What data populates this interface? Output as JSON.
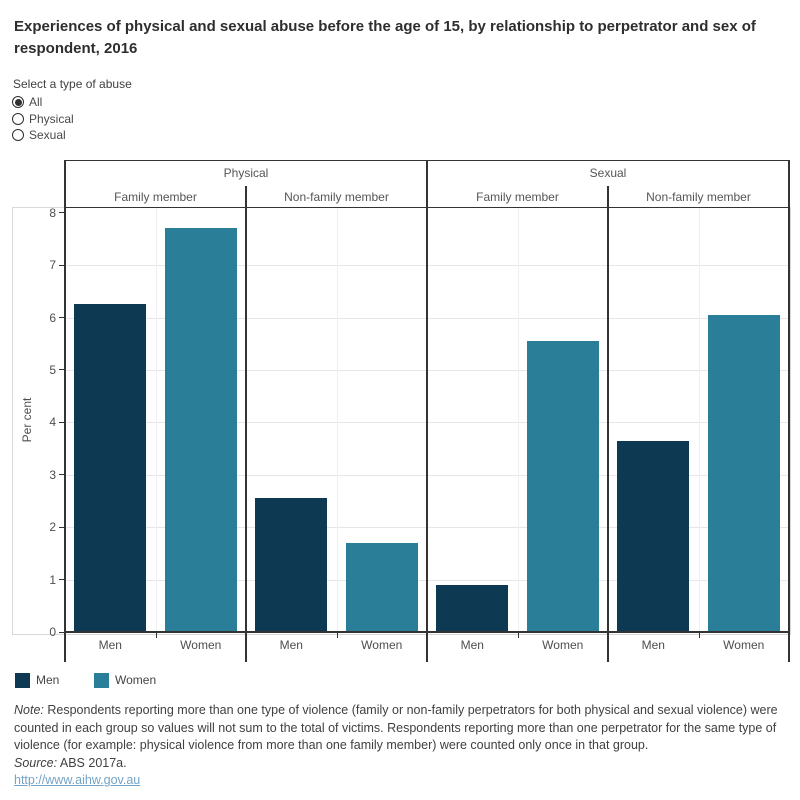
{
  "title": "Experiences of physical and sexual abuse before the age of 15, by relationship to perpetrator and sex of respondent, 2016",
  "filter": {
    "label": "Select a type of abuse",
    "options": [
      {
        "label": "All",
        "selected": true
      },
      {
        "label": "Physical",
        "selected": false
      },
      {
        "label": "Sexual",
        "selected": false
      }
    ]
  },
  "chart_data": {
    "type": "bar",
    "title": "Experiences of physical and sexual abuse before the age of 15, by relationship to perpetrator and sex of respondent, 2016",
    "ylabel": "Per cent",
    "ylim": [
      0,
      8
    ],
    "yticks": [
      0,
      1,
      2,
      3,
      4,
      5,
      6,
      7,
      8
    ],
    "grid": "horizontal",
    "legend_position": "bottom-left",
    "x_categories": [
      "Men",
      "Women"
    ],
    "series": [
      {
        "name": "Men",
        "color": "#0d3a52"
      },
      {
        "name": "Women",
        "color": "#2a7e98"
      }
    ],
    "group_headers": [
      {
        "label": "Physical",
        "spans_panels": [
          0,
          1
        ]
      },
      {
        "label": "Sexual",
        "spans_panels": [
          2,
          3
        ]
      }
    ],
    "panels": [
      {
        "abuse_type": "Physical",
        "perpetrator": "Family member",
        "values": {
          "Men": 6.25,
          "Women": 7.7
        }
      },
      {
        "abuse_type": "Physical",
        "perpetrator": "Non-family member",
        "values": {
          "Men": 2.55,
          "Women": 1.7
        }
      },
      {
        "abuse_type": "Sexual",
        "perpetrator": "Family member",
        "values": {
          "Men": 0.9,
          "Women": 5.55
        }
      },
      {
        "abuse_type": "Sexual",
        "perpetrator": "Non-family member",
        "values": {
          "Men": 3.65,
          "Women": 6.05
        }
      }
    ]
  },
  "legend": {
    "items": [
      {
        "label": "Men",
        "color": "#0d3a52"
      },
      {
        "label": "Women",
        "color": "#2a7e98"
      }
    ]
  },
  "footer": {
    "note_label": "Note:",
    "note_text": " Respondents reporting more than one type of violence (family or non-family perpetrators for both physical and sexual violence) were counted in each group so values will not sum to the total of victims. Respondents reporting more than one perpetrator for the same type of violence (for example: physical violence from more than one family member) were counted only once in that group.",
    "source_label": "Source:",
    "source_text": " ABS 2017a.",
    "link": "http://www.aihw.gov.au"
  },
  "colors": {
    "men_bar": "#0d3a52",
    "women_bar": "#2a7e98",
    "gridline": "#e6e6e6",
    "axis_line": "#333333",
    "link": "#74a3c6"
  }
}
